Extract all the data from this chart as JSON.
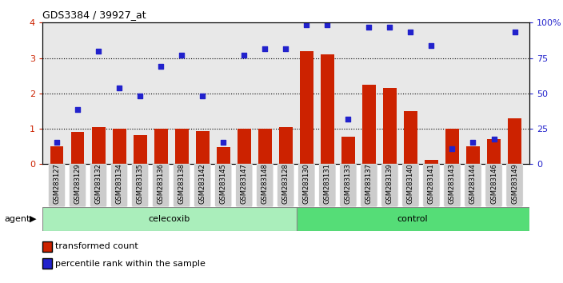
{
  "title": "GDS3384 / 39927_at",
  "samples": [
    "GSM283127",
    "GSM283129",
    "GSM283132",
    "GSM283134",
    "GSM283135",
    "GSM283136",
    "GSM283138",
    "GSM283142",
    "GSM283145",
    "GSM283147",
    "GSM283148",
    "GSM283128",
    "GSM283130",
    "GSM283131",
    "GSM283133",
    "GSM283137",
    "GSM283139",
    "GSM283140",
    "GSM283141",
    "GSM283143",
    "GSM283144",
    "GSM283146",
    "GSM283149"
  ],
  "bar_values": [
    0.5,
    0.9,
    1.05,
    1.0,
    0.82,
    1.0,
    1.0,
    0.93,
    0.48,
    1.0,
    1.0,
    1.05,
    3.2,
    3.1,
    0.77,
    2.25,
    2.15,
    1.5,
    0.12,
    1.0,
    0.5,
    0.7,
    1.3
  ],
  "dot_values": [
    0.62,
    1.55,
    3.2,
    2.15,
    1.93,
    2.77,
    3.08,
    1.93,
    0.62,
    3.08,
    3.27,
    3.27,
    3.93,
    3.93,
    1.28,
    3.88,
    3.88,
    3.73,
    3.35,
    0.43,
    0.62,
    0.7,
    3.73
  ],
  "celecoxib_count": 12,
  "control_count": 11,
  "bar_color": "#CC2200",
  "dot_color": "#2222CC",
  "celecoxib_color": "#AAEEBB",
  "control_color": "#55DD77",
  "bg_color": "#FFFFFF",
  "plot_bg_color": "#E8E8E8",
  "xtick_bg_color": "#CCCCCC",
  "ylim": [
    0,
    4
  ],
  "yticks": [
    0,
    1,
    2,
    3,
    4
  ],
  "right_yticklabels": [
    "0",
    "25",
    "50",
    "75",
    "100%"
  ]
}
